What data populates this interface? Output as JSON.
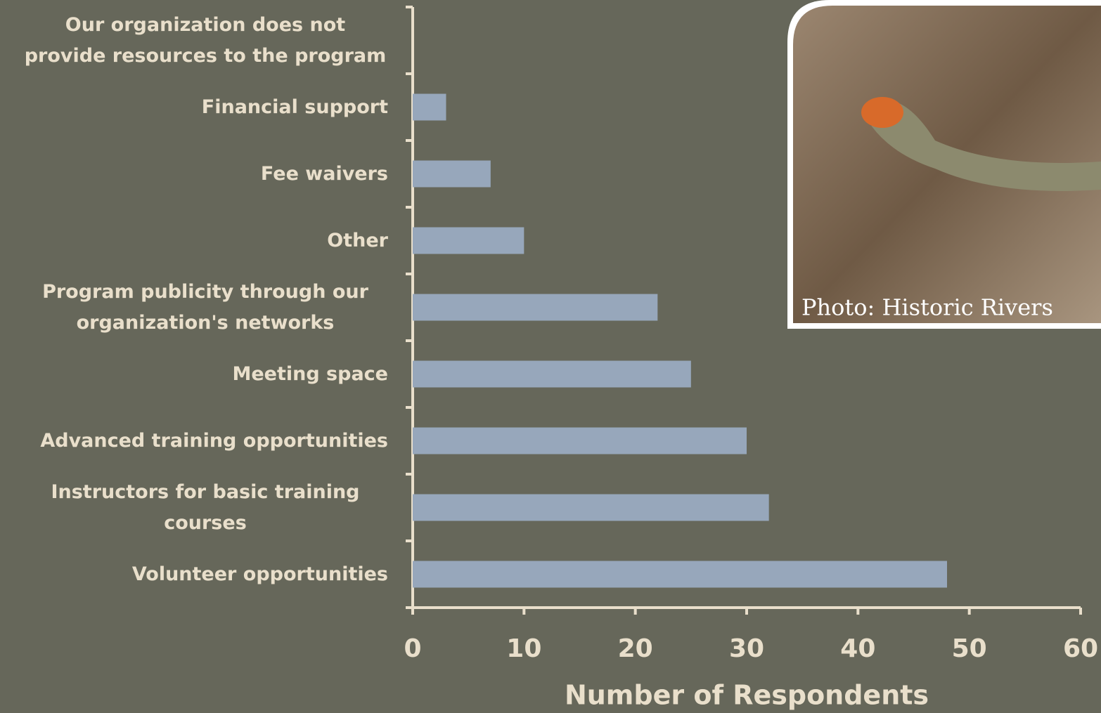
{
  "chart_data": {
    "type": "bar",
    "orientation": "horizontal",
    "categories": [
      "Our organization does not provide resources to the program",
      "Financial support",
      "Fee waivers",
      "Other",
      "Program publicity through our organization's networks",
      "Meeting space",
      "Advanced training opportunities",
      "Instructors for basic training courses",
      "Volunteer opportunities"
    ],
    "values": [
      0,
      3,
      7,
      10,
      22,
      25,
      30,
      32,
      48
    ],
    "color": "#97a7bb",
    "x_label": "Number of Respondents",
    "xlim": [
      0,
      60
    ],
    "xticks": [
      0,
      10,
      20,
      30,
      40,
      50,
      60
    ],
    "grid": false
  },
  "photo": {
    "caption": "Photo: Historic Rivers"
  }
}
